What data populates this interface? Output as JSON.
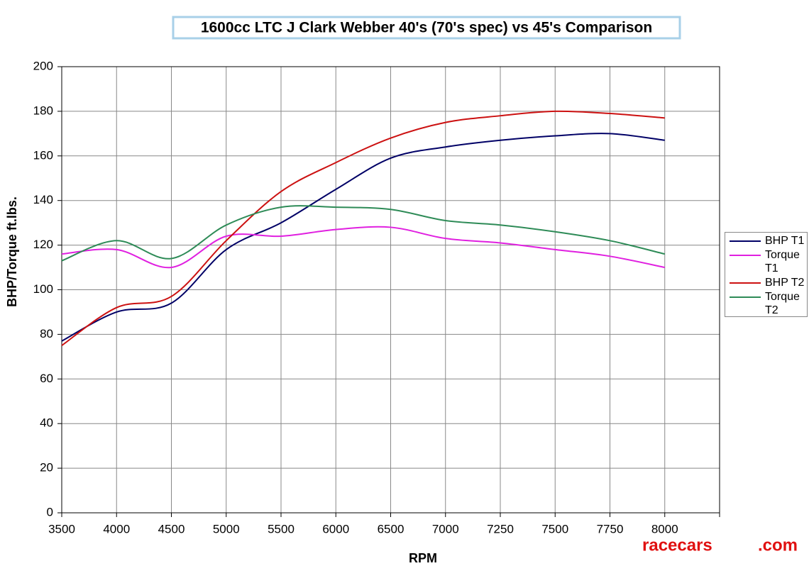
{
  "chart_data": {
    "type": "line",
    "title": "1600cc LTC J Clark Webber 40's (70's spec) vs 45's Comparison",
    "x_label": "RPM",
    "y_label": "BHP/Torque ft.lbs.",
    "categories": [
      "3500",
      "4000",
      "4500",
      "5000",
      "5500",
      "6000",
      "6500",
      "7000",
      "7250",
      "7500",
      "7750",
      "8000",
      null
    ],
    "series": [
      {
        "name": "BHP T1",
        "color": "#000066",
        "values": [
          77,
          90,
          94,
          118,
          130,
          145,
          159,
          164,
          167,
          169,
          170,
          167,
          null
        ]
      },
      {
        "name": "Torque T1",
        "color": "#e020e0",
        "values": [
          116,
          118,
          110,
          124,
          124,
          127,
          128,
          123,
          121,
          118,
          115,
          110,
          null
        ]
      },
      {
        "name": "BHP T2",
        "color": "#cc1111",
        "values": [
          75,
          92,
          97,
          122,
          144,
          157,
          168,
          175,
          178,
          180,
          179,
          177,
          null
        ]
      },
      {
        "name": "Torque T2",
        "color": "#2e8b57",
        "values": [
          113,
          122,
          114,
          129,
          137,
          137,
          136,
          131,
          129,
          126,
          122,
          116,
          null
        ]
      }
    ],
    "ylim": [
      0,
      200
    ],
    "yticks": [
      0,
      20,
      40,
      60,
      80,
      100,
      120,
      140,
      160,
      180,
      200
    ],
    "grid": true,
    "legend": "right",
    "watermark": [
      "racecars",
      ".com"
    ]
  }
}
